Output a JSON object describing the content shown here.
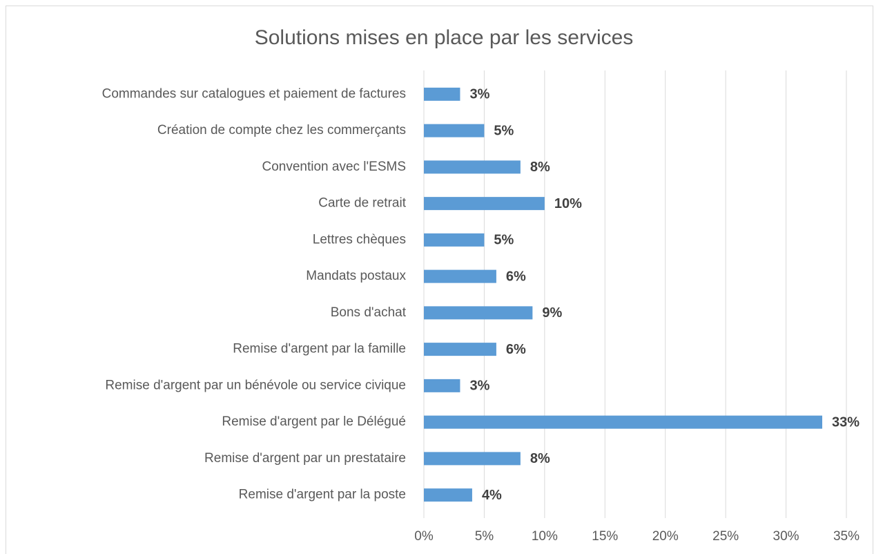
{
  "chart_data": {
    "type": "bar",
    "orientation": "horizontal",
    "title": "Solutions mises en place par les services",
    "categories": [
      "Commandes sur catalogues et paiement de factures",
      "Création de compte chez les commerçants",
      "Convention avec l'ESMS",
      "Carte de retrait",
      "Lettres chèques",
      "Mandats postaux",
      "Bons d'achat",
      "Remise d'argent par la famille",
      "Remise d'argent par un bénévole ou service civique",
      "Remise d'argent par le Délégué",
      "Remise d'argent par un prestataire",
      "Remise d'argent par la poste"
    ],
    "values": [
      3,
      5,
      8,
      10,
      5,
      6,
      9,
      6,
      3,
      33,
      8,
      4
    ],
    "value_labels": [
      "3%",
      "5%",
      "8%",
      "10%",
      "5%",
      "6%",
      "9%",
      "6%",
      "3%",
      "33%",
      "8%",
      "4%"
    ],
    "color": "#5b9bd5",
    "xlim": [
      0,
      35
    ],
    "xticks": [
      {
        "value": 0,
        "label": "0%"
      },
      {
        "value": 5,
        "label": "5%"
      },
      {
        "value": 10,
        "label": "10%"
      },
      {
        "value": 15,
        "label": "15%"
      },
      {
        "value": 20,
        "label": "20%"
      },
      {
        "value": 25,
        "label": "25%"
      },
      {
        "value": 30,
        "label": "30%"
      },
      {
        "value": 35,
        "label": "35%"
      }
    ],
    "grid": true
  }
}
